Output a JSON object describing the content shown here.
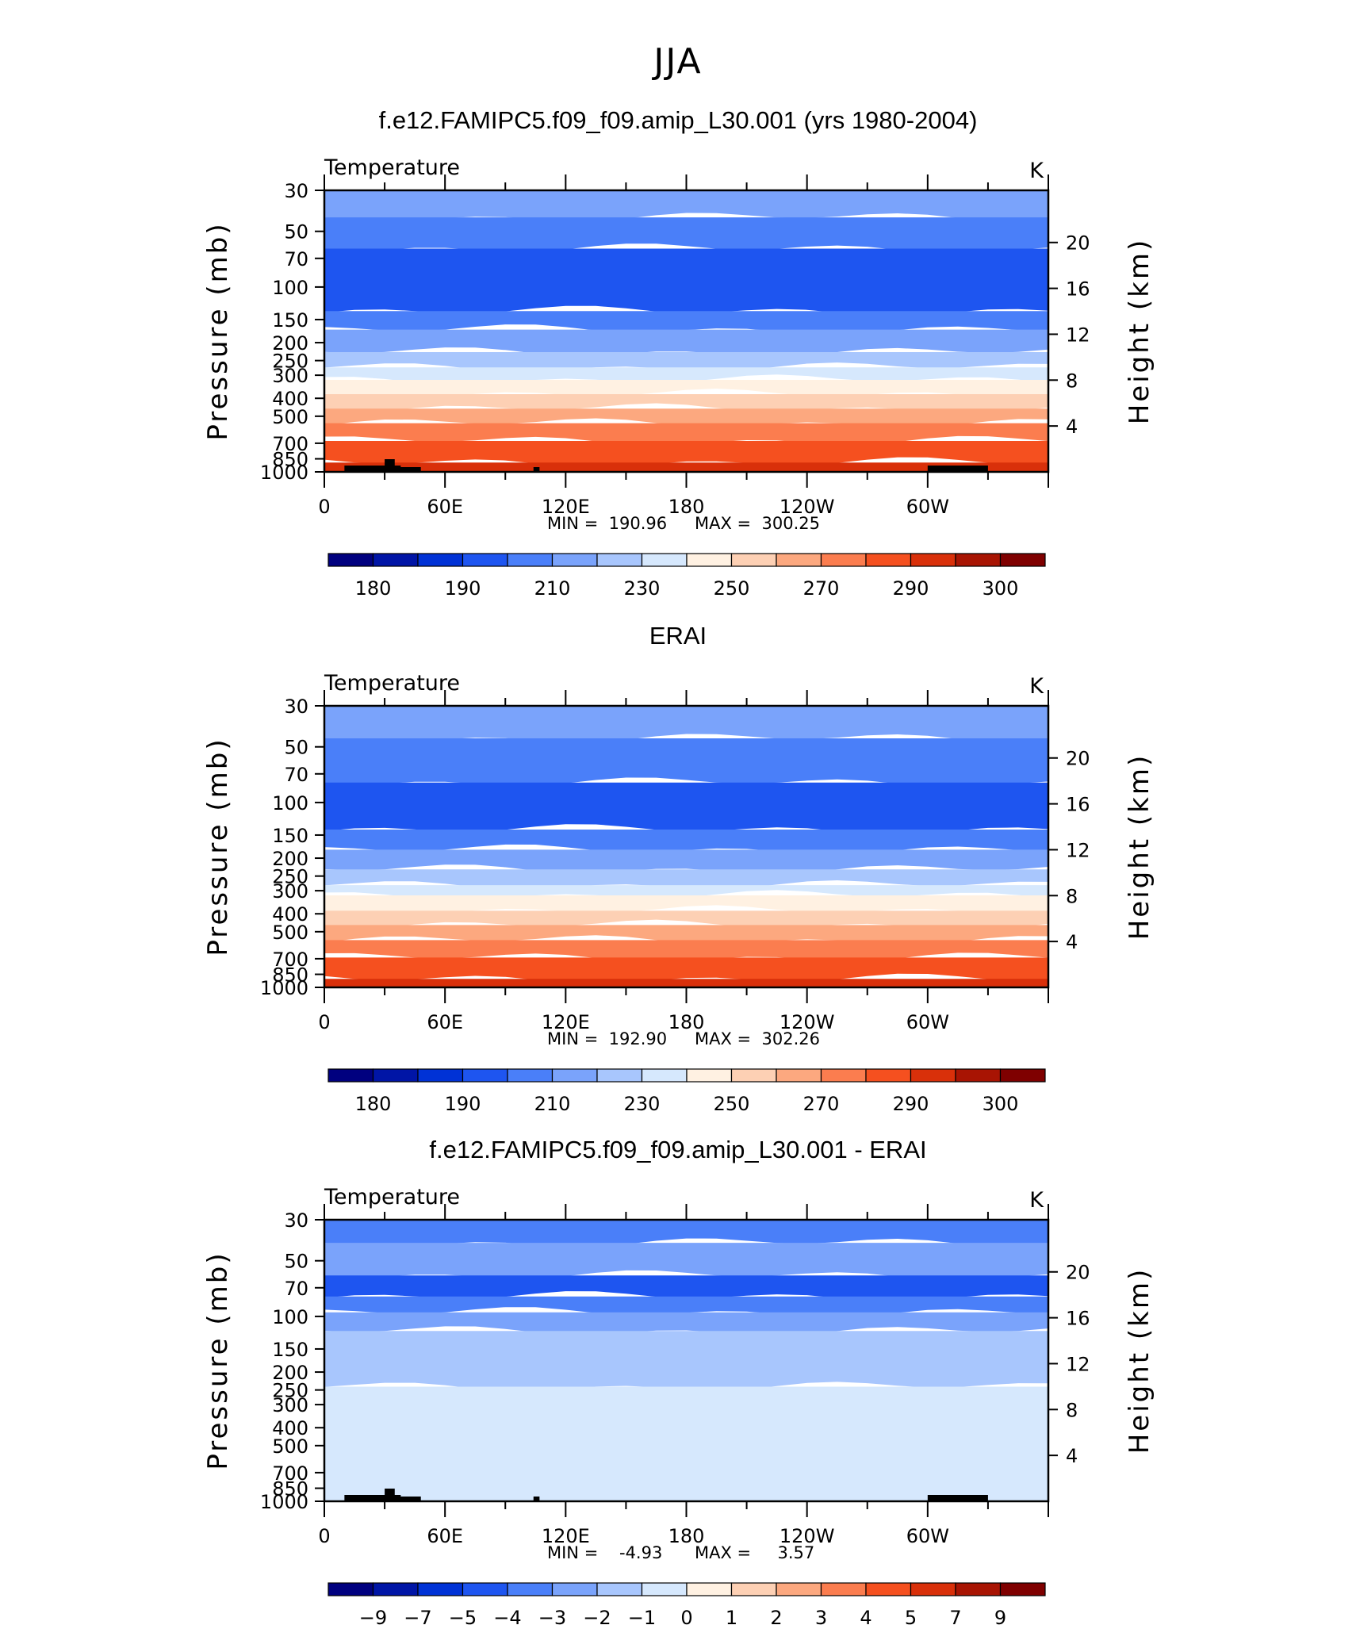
{
  "main_title": "JJA",
  "chart_data": [
    {
      "type": "heatmap",
      "title": "f.e12.FAMIPC5.f09_f09.amip_L30.001 (yrs 1980-2004)",
      "left_label": "Temperature",
      "right_label": "K",
      "ylabel": "Pressure (mb)",
      "y2label": "Height (km)",
      "pressure_ticks": [
        "30",
        "50",
        "70",
        "100",
        "150",
        "200",
        "250",
        "300",
        "400",
        "500",
        "700",
        "850",
        "1000"
      ],
      "height_ticks": [
        "20",
        "16",
        "12",
        "8",
        "4"
      ],
      "x_ticks": [
        "0",
        "60E",
        "120E",
        "180",
        "120W",
        "60W"
      ],
      "min_text": "MIN =  190.96",
      "max_text": "MAX =  300.25",
      "min": 190.96,
      "max": 300.25,
      "colorbar_labels": [
        "180",
        "190",
        "210",
        "230",
        "250",
        "270",
        "290",
        "300"
      ],
      "colors": [
        "#00007f",
        "#0015a6",
        "#0032d6",
        "#1e55f0",
        "#4a7ff9",
        "#7aa3fb",
        "#a8c6fd",
        "#d6e8fd",
        "#fff1e2",
        "#fdd0b4",
        "#fca87f",
        "#fb7d4f",
        "#f5501f",
        "#d9300a",
        "#a81403",
        "#7f0000"
      ],
      "bands": [
        {
          "p": 30,
          "color": "#7aa3fb"
        },
        {
          "p": 42,
          "color": "#4a7ff9"
        },
        {
          "p": 62,
          "color": "#1e55f0"
        },
        {
          "p": 135,
          "color": "#4a7ff9"
        },
        {
          "p": 170,
          "color": "#7aa3fb"
        },
        {
          "p": 225,
          "color": "#a8c6fd"
        },
        {
          "p": 272,
          "color": "#d6e8fd"
        },
        {
          "p": 318,
          "color": "#fff1e2"
        },
        {
          "p": 380,
          "color": "#fdd0b4"
        },
        {
          "p": 455,
          "color": "#fca87f"
        },
        {
          "p": 545,
          "color": "#fb7d4f"
        },
        {
          "p": 680,
          "color": "#f5501f"
        },
        {
          "p": 890,
          "color": "#d9300a"
        }
      ],
      "topography": true
    },
    {
      "type": "heatmap",
      "title": "ERAI",
      "left_label": "Temperature",
      "right_label": "K",
      "ylabel": "Pressure (mb)",
      "y2label": "Height (km)",
      "pressure_ticks": [
        "30",
        "50",
        "70",
        "100",
        "150",
        "200",
        "250",
        "300",
        "400",
        "500",
        "700",
        "850",
        "1000"
      ],
      "height_ticks": [
        "20",
        "16",
        "12",
        "8",
        "4"
      ],
      "x_ticks": [
        "0",
        "60E",
        "120E",
        "180",
        "120W",
        "60W"
      ],
      "min_text": "MIN =  192.90",
      "max_text": "MAX =  302.26",
      "min": 192.9,
      "max": 302.26,
      "colorbar_labels": [
        "180",
        "190",
        "210",
        "230",
        "250",
        "270",
        "290",
        "300"
      ],
      "colors": [
        "#00007f",
        "#0015a6",
        "#0032d6",
        "#1e55f0",
        "#4a7ff9",
        "#7aa3fb",
        "#a8c6fd",
        "#d6e8fd",
        "#fff1e2",
        "#fdd0b4",
        "#fca87f",
        "#fb7d4f",
        "#f5501f",
        "#d9300a",
        "#a81403",
        "#7f0000"
      ],
      "bands": [
        {
          "p": 30,
          "color": "#7aa3fb"
        },
        {
          "p": 45,
          "color": "#4a7ff9"
        },
        {
          "p": 78,
          "color": "#1e55f0"
        },
        {
          "p": 140,
          "color": "#4a7ff9"
        },
        {
          "p": 180,
          "color": "#7aa3fb"
        },
        {
          "p": 230,
          "color": "#a8c6fd"
        },
        {
          "p": 280,
          "color": "#d6e8fd"
        },
        {
          "p": 318,
          "color": "#fff1e2"
        },
        {
          "p": 385,
          "color": "#fdd0b4"
        },
        {
          "p": 460,
          "color": "#fca87f"
        },
        {
          "p": 555,
          "color": "#fb7d4f"
        },
        {
          "p": 690,
          "color": "#f5501f"
        },
        {
          "p": 900,
          "color": "#d9300a"
        }
      ],
      "topography": false
    },
    {
      "type": "heatmap",
      "title": "f.e12.FAMIPC5.f09_f09.amip_L30.001 - ERAI",
      "left_label": "Temperature",
      "right_label": "K",
      "ylabel": "Pressure (mb)",
      "y2label": "Height (km)",
      "pressure_ticks": [
        "30",
        "50",
        "70",
        "100",
        "150",
        "200",
        "250",
        "300",
        "400",
        "500",
        "700",
        "850",
        "1000"
      ],
      "height_ticks": [
        "20",
        "16",
        "12",
        "8",
        "4"
      ],
      "x_ticks": [
        "0",
        "60E",
        "120E",
        "180",
        "120W",
        "60W"
      ],
      "min_text": "MIN =    -4.93",
      "max_text": "MAX =     3.57",
      "min": -4.93,
      "max": 3.57,
      "colorbar_labels": [
        "-9",
        "-7",
        "-5",
        "-4",
        "-3",
        "-2",
        "-1",
        "0",
        "1",
        "2",
        "3",
        "4",
        "5",
        "7",
        "9"
      ],
      "colors": [
        "#00007f",
        "#0015a6",
        "#0032d6",
        "#1e55f0",
        "#4a7ff9",
        "#7aa3fb",
        "#a8c6fd",
        "#d6e8fd",
        "#fff1e2",
        "#fdd0b4",
        "#fca87f",
        "#fb7d4f",
        "#f5501f",
        "#d9300a",
        "#a81403",
        "#7f0000"
      ],
      "bands": [
        {
          "p": 30,
          "color": "#4a7ff9"
        },
        {
          "p": 40,
          "color": "#7aa3fb"
        },
        {
          "p": 60,
          "color": "#1e55f0"
        },
        {
          "p": 78,
          "color": "#4a7ff9"
        },
        {
          "p": 95,
          "color": "#7aa3fb"
        },
        {
          "p": 120,
          "color": "#a8c6fd"
        },
        {
          "p": 240,
          "color": "#d6e8fd"
        }
      ],
      "topography": true
    }
  ]
}
